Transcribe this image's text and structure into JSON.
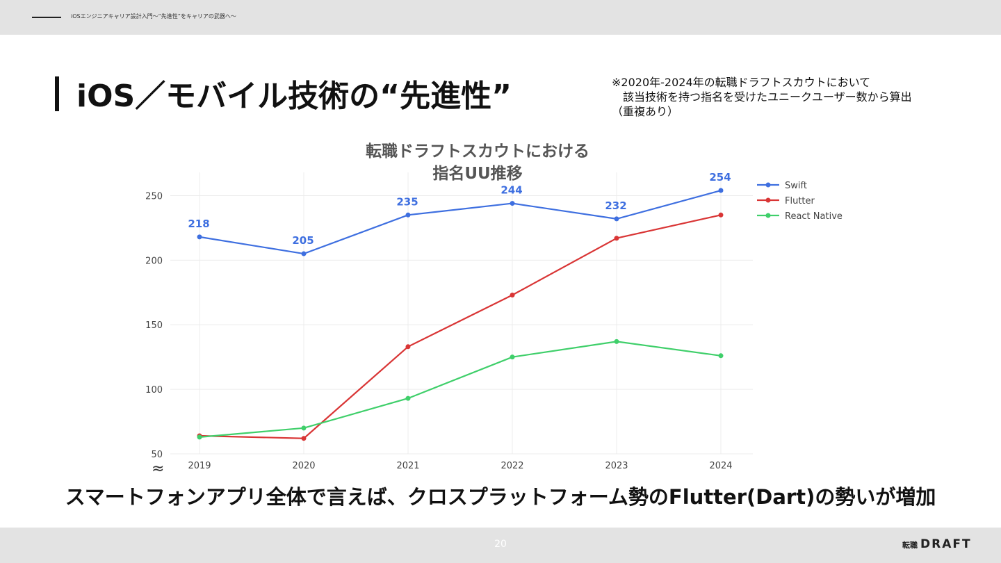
{
  "header": {
    "breadcrumb": "iOSエンジニアキャリア設計入門〜“先進性”をキャリアの武器へ〜"
  },
  "slide": {
    "title": "iOS／モバイル技術の“先進性”",
    "note_lines": [
      "※2020年-2024年の転職ドラフトスカウトにおいて",
      "　該当技術を持つ指名を受けたユニークユーザー数から算出",
      "（重複あり）"
    ],
    "axis_break_symbol": "≈",
    "summary": "スマートフォンアプリ全体で言えば、クロスプラットフォーム勢のFlutter(Dart)の勢いが増加"
  },
  "chart_data": {
    "type": "line",
    "title": [
      "転職ドラフトスカウトにおける",
      "指名UU推移"
    ],
    "xlabel": "",
    "ylabel": "",
    "x": [
      "2019",
      "2020",
      "2021",
      "2022",
      "2023",
      "2024"
    ],
    "ylim": [
      50,
      268
    ],
    "yticks": [
      50,
      100,
      150,
      200,
      250
    ],
    "grid": true,
    "legend": "top-right",
    "series": [
      {
        "name": "Swift",
        "color": "#3e6fe0",
        "values": [
          218,
          205,
          235,
          244,
          232,
          254
        ],
        "labels": [
          "218",
          "205",
          "235",
          "244",
          "232",
          "254"
        ]
      },
      {
        "name": "Flutter",
        "color": "#d93535",
        "values": [
          64,
          62,
          133,
          173,
          217,
          235
        ]
      },
      {
        "name": "React Native",
        "color": "#3fcf6a",
        "values": [
          63,
          70,
          93,
          125,
          137,
          126
        ]
      }
    ]
  },
  "footer": {
    "page_number": "20",
    "logo_small": "転職",
    "logo_big": "DRAFT"
  }
}
